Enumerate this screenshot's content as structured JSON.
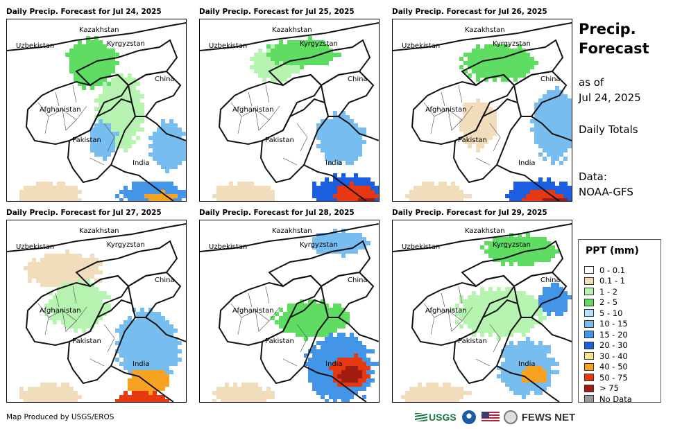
{
  "panels": [
    {
      "title": "Daily Precip. Forecast for Jul 24, 2025"
    },
    {
      "title": "Daily Precip. Forecast for Jul 25, 2025"
    },
    {
      "title": "Daily Precip. Forecast for Jul 26, 2025"
    },
    {
      "title": "Daily Precip. Forecast for Jul 27, 2025"
    },
    {
      "title": "Daily Precip. Forecast for Jul 28, 2025"
    },
    {
      "title": "Daily Precip. Forecast for Jul 29, 2025"
    }
  ],
  "place_labels": {
    "kazakhstan": "Kazakhstan",
    "uzbekistan": "Uzbekistan",
    "kyrgyzstan": "Kyrgyzstan",
    "china": "China",
    "afghanistan": "Afghanistan",
    "pakistan": "Pakistan",
    "india": "India"
  },
  "side": {
    "title_line1": "Precip.",
    "title_line2": "Forecast",
    "asof_line1": "as of",
    "asof_line2": "Jul 24, 2025",
    "totals": "Daily Totals",
    "data_line1": "Data:",
    "data_line2": "NOAA-GFS"
  },
  "legend": {
    "title": "PPT (mm)",
    "items": [
      {
        "label": "0 - 0.1",
        "color": "#ffffff"
      },
      {
        "label": "0.1 - 1",
        "color": "#f1dcbc"
      },
      {
        "label": "1 - 2",
        "color": "#b6f2b0"
      },
      {
        "label": "2 - 5",
        "color": "#5fdc62"
      },
      {
        "label": "5 - 10",
        "color": "#b4e4f8"
      },
      {
        "label": "10 - 15",
        "color": "#78bdf0"
      },
      {
        "label": "15 - 20",
        "color": "#4395e8"
      },
      {
        "label": "20 - 30",
        "color": "#1c5ee0"
      },
      {
        "label": "30 - 40",
        "color": "#fbe58a"
      },
      {
        "label": "40 - 50",
        "color": "#f7a321"
      },
      {
        "label": "50 - 75",
        "color": "#e8380f"
      },
      {
        "label": "> 75",
        "color": "#a31c14"
      },
      {
        "label": "No Data",
        "color": "#9b9b9b"
      }
    ]
  },
  "footer": {
    "credit": "Map Produced by USGS/EROS",
    "usgs": "USGS",
    "fews": "FEWS NET"
  }
}
